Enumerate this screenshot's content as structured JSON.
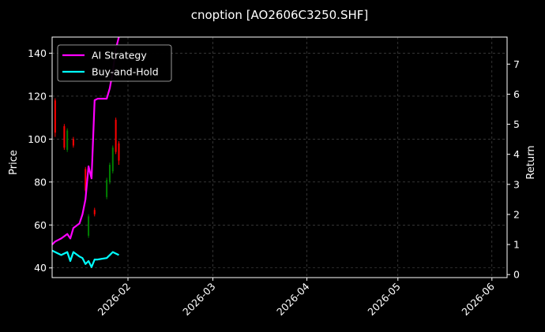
{
  "chart_data": {
    "type": "line",
    "title": "cnoption [AO2606C3250.SHF]",
    "xlabel": "",
    "ylabel": "Price",
    "y2label": "Return",
    "xlim": [
      "2026-01-07",
      "2026-06-06"
    ],
    "ylim": [
      35.5,
      147.5
    ],
    "y2lim": [
      -0.1,
      7.9
    ],
    "x_ticks": [
      "2026-02",
      "2026-03",
      "2026-04",
      "2026-05",
      "2026-06"
    ],
    "y_ticks": [
      40,
      60,
      80,
      100,
      120,
      140
    ],
    "y2_ticks": [
      0,
      1,
      2,
      3,
      4,
      5,
      6,
      7
    ],
    "grid": true,
    "legend_position": "top-left",
    "colors": {
      "up": "#008000",
      "down": "#ff0000",
      "ai": "#ff00ff",
      "bh": "#00ffff",
      "grid": "#555555"
    },
    "candles": [
      {
        "x": "2026-01-08",
        "open": 118,
        "close": 103,
        "high": 119,
        "low": 101
      },
      {
        "x": "2026-01-11",
        "open": 106,
        "close": 96,
        "high": 107,
        "low": 95
      },
      {
        "x": "2026-01-12",
        "open": 95,
        "close": 104,
        "high": 105,
        "low": 94
      },
      {
        "x": "2026-01-14",
        "open": 100,
        "close": 97,
        "high": 101,
        "low": 96
      },
      {
        "x": "2026-01-18",
        "open": 86,
        "close": 76,
        "high": 87,
        "low": 75
      },
      {
        "x": "2026-01-19",
        "open": 55,
        "close": 64,
        "high": 65,
        "low": 54
      },
      {
        "x": "2026-01-21",
        "open": 67,
        "close": 65,
        "high": 68,
        "low": 64
      },
      {
        "x": "2026-01-25",
        "open": 73,
        "close": 81,
        "high": 82,
        "low": 72
      },
      {
        "x": "2026-01-26",
        "open": 80,
        "close": 88,
        "high": 89,
        "low": 79
      },
      {
        "x": "2026-01-27",
        "open": 85,
        "close": 96,
        "high": 97,
        "low": 84
      },
      {
        "x": "2026-01-28",
        "open": 109,
        "close": 94,
        "high": 110,
        "low": 93
      },
      {
        "x": "2026-01-29",
        "open": 98,
        "close": 90,
        "high": 99,
        "low": 88
      }
    ],
    "series": [
      {
        "name": "AI Strategy",
        "axis": "right",
        "x": [
          "2026-01-07",
          "2026-01-08",
          "2026-01-10",
          "2026-01-12",
          "2026-01-13",
          "2026-01-14",
          "2026-01-16",
          "2026-01-17",
          "2026-01-18",
          "2026-01-19",
          "2026-01-20",
          "2026-01-21",
          "2026-01-22",
          "2026-01-25",
          "2026-01-26",
          "2026-01-27",
          "2026-01-28",
          "2026-01-29"
        ],
        "y": [
          1.0,
          1.1,
          1.2,
          1.35,
          1.2,
          1.55,
          1.7,
          2.0,
          2.5,
          3.6,
          3.2,
          5.8,
          5.85,
          5.85,
          6.2,
          6.75,
          7.5,
          7.9
        ]
      },
      {
        "name": "Buy-and-Hold",
        "axis": "right",
        "x": [
          "2026-01-07",
          "2026-01-08",
          "2026-01-10",
          "2026-01-12",
          "2026-01-13",
          "2026-01-14",
          "2026-01-16",
          "2026-01-17",
          "2026-01-18",
          "2026-01-19",
          "2026-01-20",
          "2026-01-21",
          "2026-01-22",
          "2026-01-25",
          "2026-01-26",
          "2026-01-27",
          "2026-01-28",
          "2026-01-29"
        ],
        "y": [
          0.8,
          0.75,
          0.65,
          0.75,
          0.45,
          0.75,
          0.6,
          0.55,
          0.35,
          0.45,
          0.25,
          0.5,
          0.5,
          0.55,
          0.65,
          0.75,
          0.7,
          0.65
        ]
      }
    ]
  }
}
